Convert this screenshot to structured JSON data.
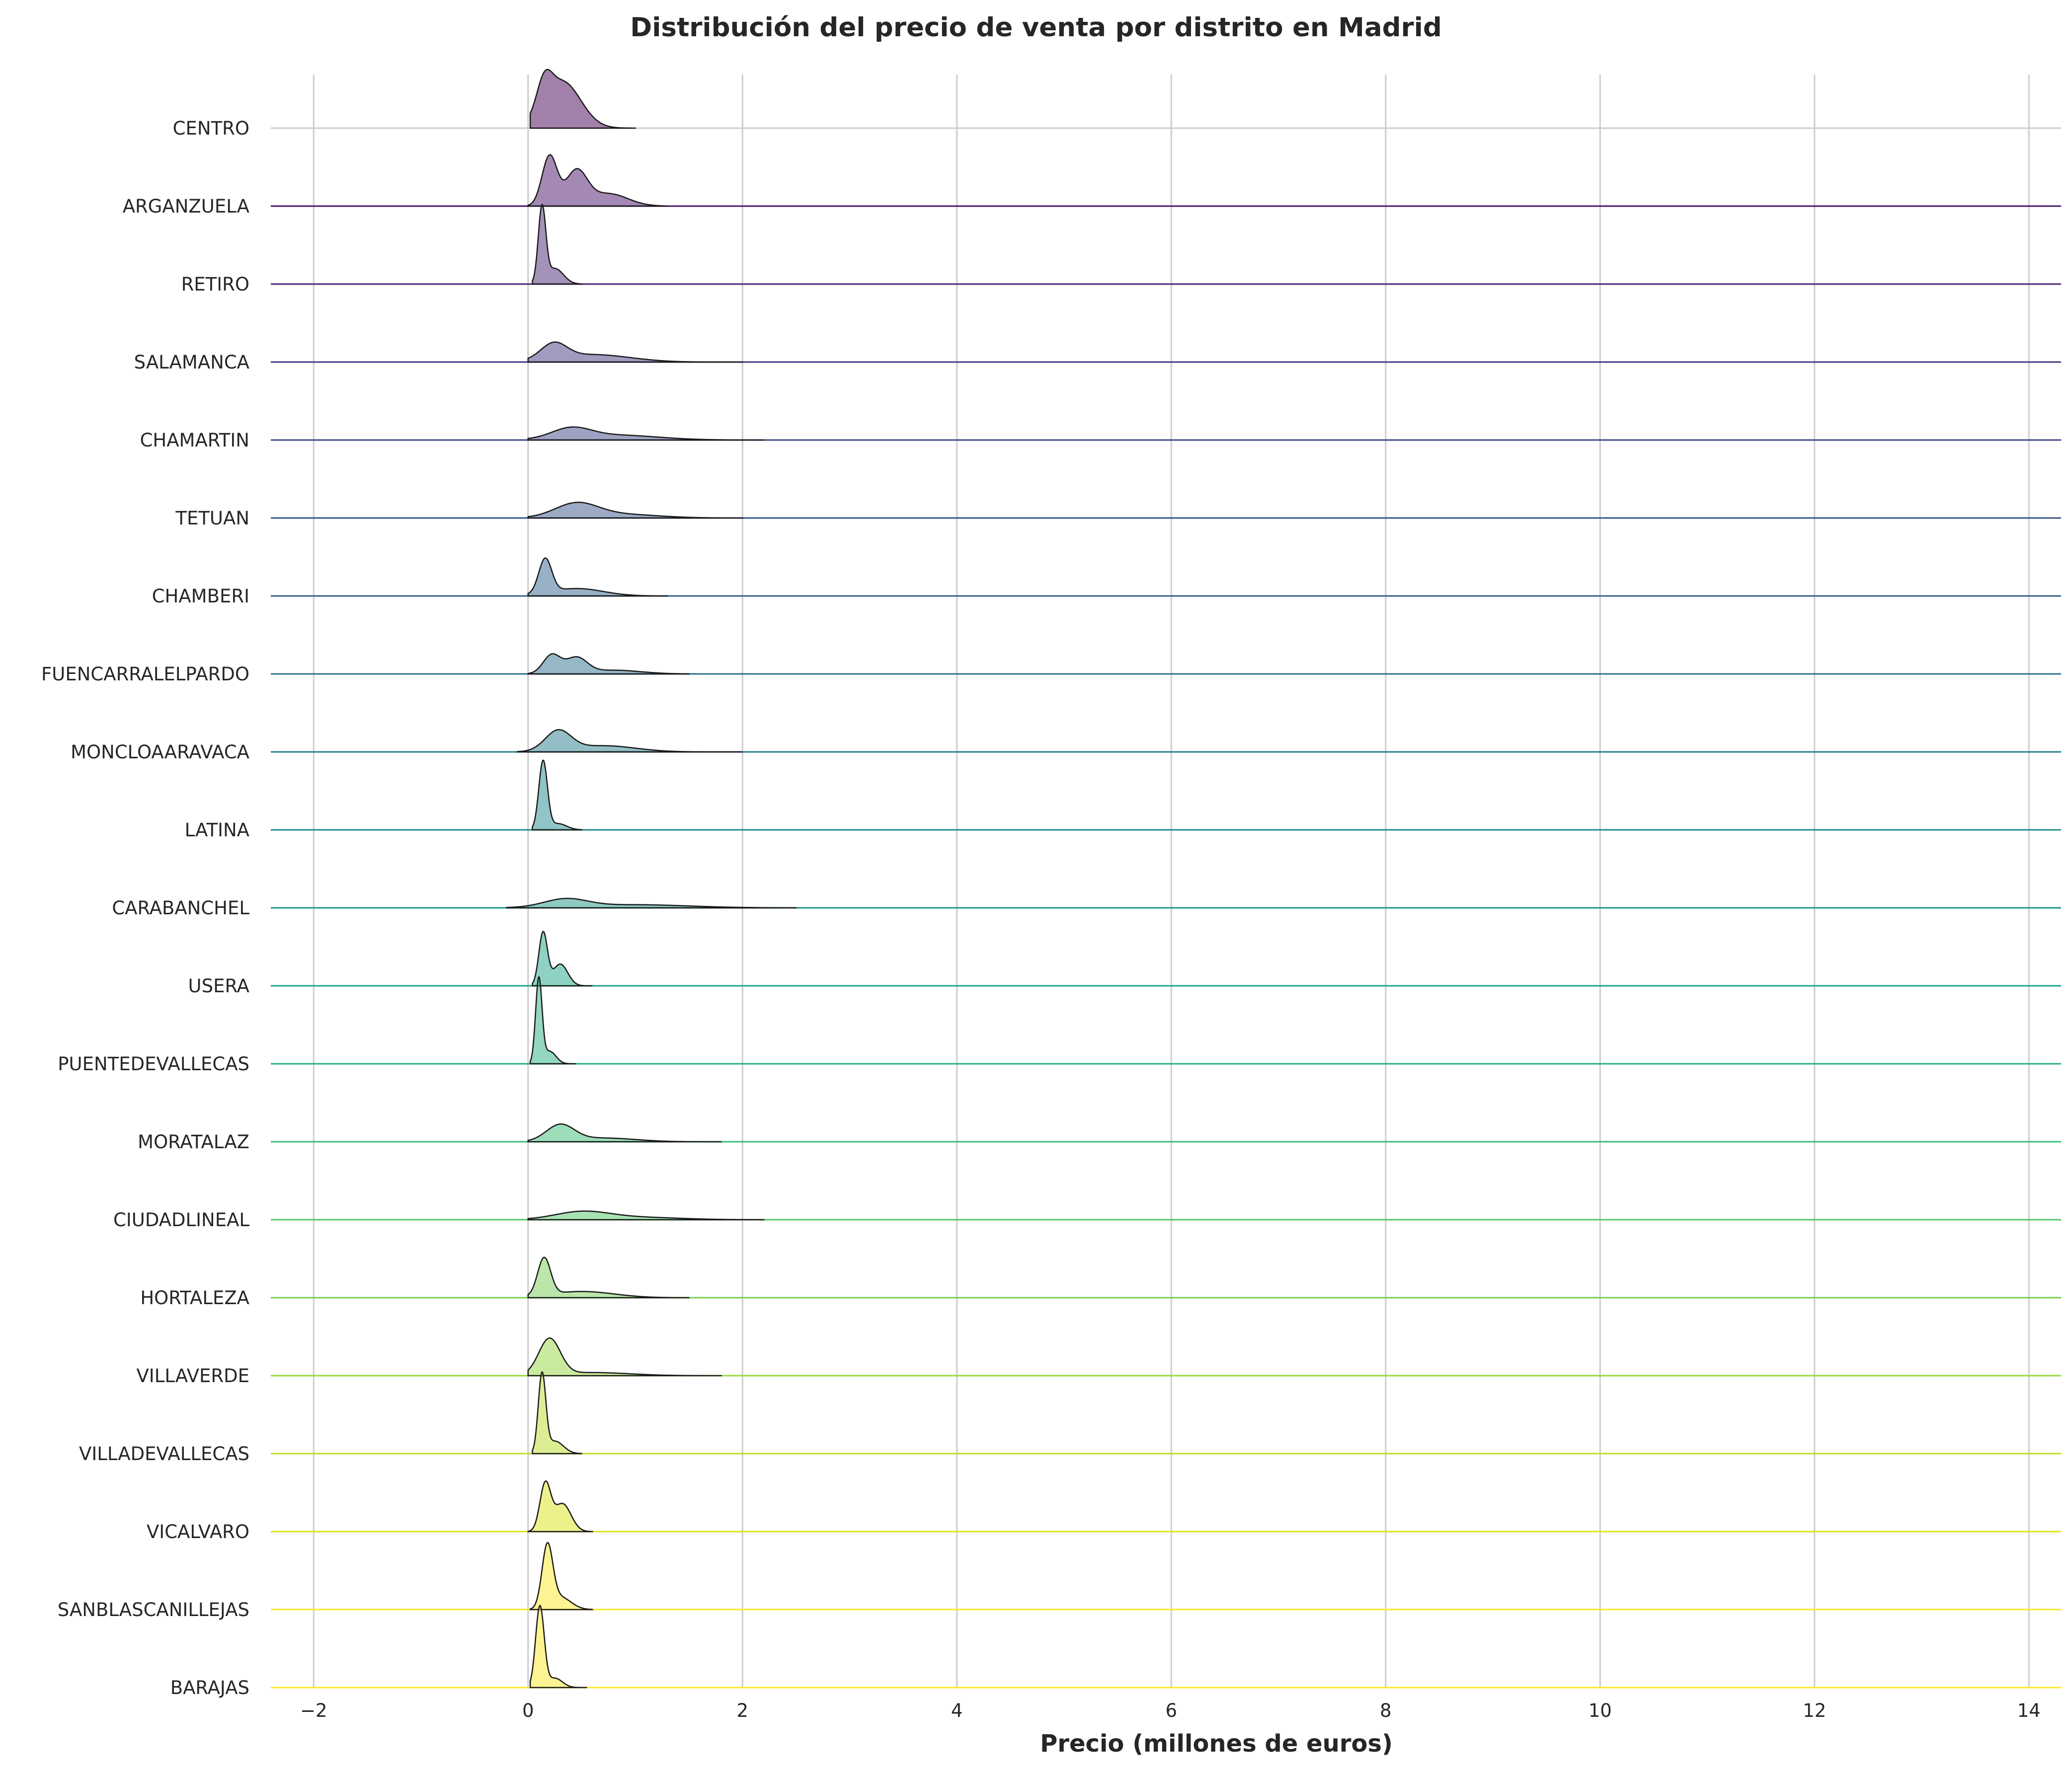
{
  "chart_data": {
    "type": "ridgeline",
    "title": "Distribución del precio de venta por distrito en Madrid",
    "xlabel": "Precio (millones de euros)",
    "ylabel": "",
    "xlim": [
      -2.4,
      14.3
    ],
    "xticks": [
      -2,
      0,
      2,
      4,
      6,
      8,
      10,
      12,
      14
    ],
    "xtick_labels": [
      "−2",
      "0",
      "2",
      "4",
      "6",
      "8",
      "10",
      "12",
      "14"
    ],
    "grid": true,
    "colormap": "viridis",
    "colors": [
      "#440154",
      "#481467",
      "#482576",
      "#453781",
      "#3f4788",
      "#39558c",
      "#33638d",
      "#2d718e",
      "#287d8e",
      "#238a8d",
      "#1f968b",
      "#20a386",
      "#29af7f",
      "#3cbc75",
      "#56c667",
      "#75d054",
      "#95d840",
      "#bade28",
      "#dde318",
      "#fde725",
      "#fde725"
    ],
    "categories": [
      "CENTRO",
      "ARGANZUELA",
      "RETIRO",
      "SALAMANCA",
      "CHAMARTIN",
      "TETUAN",
      "CHAMBERI",
      "FUENCARRALELPARDO",
      "MONCLOAARAVACA",
      "LATINA",
      "CARABANCHEL",
      "USERA",
      "PUENTEDEVALLECAS",
      "MORATALAZ",
      "CIUDADLINEAL",
      "HORTALEZA",
      "VILLAVERDE",
      "VILLADEVALLECAS",
      "VICALVARO",
      "SANBLASCANILLEJAS",
      "BARAJAS"
    ],
    "series": [
      {
        "name": "CENTRO",
        "components": [
          {
            "mu": 0.15,
            "sigma": 0.07,
            "a": 0.45
          },
          {
            "mu": 0.32,
            "sigma": 0.17,
            "a": 0.75
          }
        ],
        "xmin": 0.02,
        "xmax": 1.0
      },
      {
        "name": "ARGANZUELA",
        "components": [
          {
            "mu": 0.2,
            "sigma": 0.07,
            "a": 0.8
          },
          {
            "mu": 0.45,
            "sigma": 0.1,
            "a": 0.55
          },
          {
            "mu": 0.75,
            "sigma": 0.18,
            "a": 0.2
          }
        ],
        "xmin": 0.0,
        "xmax": 1.3
      },
      {
        "name": "RETIRO",
        "components": [
          {
            "mu": 0.13,
            "sigma": 0.035,
            "a": 1.2
          },
          {
            "mu": 0.25,
            "sigma": 0.08,
            "a": 0.25
          }
        ],
        "xmin": 0.04,
        "xmax": 0.5
      },
      {
        "name": "SALAMANCA",
        "components": [
          {
            "mu": 0.24,
            "sigma": 0.12,
            "a": 0.25
          },
          {
            "mu": 0.6,
            "sigma": 0.35,
            "a": 0.12
          }
        ],
        "xmin": 0.0,
        "xmax": 2.0
      },
      {
        "name": "CHAMARTIN",
        "components": [
          {
            "mu": 0.4,
            "sigma": 0.18,
            "a": 0.16
          },
          {
            "mu": 0.8,
            "sigma": 0.4,
            "a": 0.08
          }
        ],
        "xmin": 0.0,
        "xmax": 2.2
      },
      {
        "name": "TETUAN",
        "components": [
          {
            "mu": 0.45,
            "sigma": 0.2,
            "a": 0.22
          },
          {
            "mu": 0.85,
            "sigma": 0.35,
            "a": 0.06
          }
        ],
        "xmin": 0.0,
        "xmax": 2.0
      },
      {
        "name": "CHAMBERI",
        "components": [
          {
            "mu": 0.16,
            "sigma": 0.06,
            "a": 0.55
          },
          {
            "mu": 0.45,
            "sigma": 0.25,
            "a": 0.12
          }
        ],
        "xmin": 0.0,
        "xmax": 1.3
      },
      {
        "name": "FUENCARRALELPARDO",
        "components": [
          {
            "mu": 0.22,
            "sigma": 0.08,
            "a": 0.3
          },
          {
            "mu": 0.45,
            "sigma": 0.1,
            "a": 0.25
          },
          {
            "mu": 0.8,
            "sigma": 0.25,
            "a": 0.06
          }
        ],
        "xmin": 0.0,
        "xmax": 1.5
      },
      {
        "name": "MONCLOAARAVACA",
        "components": [
          {
            "mu": 0.28,
            "sigma": 0.12,
            "a": 0.32
          },
          {
            "mu": 0.7,
            "sigma": 0.3,
            "a": 0.1
          }
        ],
        "xmin": -0.1,
        "xmax": 2.0
      },
      {
        "name": "LATINA",
        "components": [
          {
            "mu": 0.14,
            "sigma": 0.04,
            "a": 1.1
          },
          {
            "mu": 0.28,
            "sigma": 0.08,
            "a": 0.1
          }
        ],
        "xmin": 0.04,
        "xmax": 0.5
      },
      {
        "name": "CARABANCHEL",
        "components": [
          {
            "mu": 0.35,
            "sigma": 0.2,
            "a": 0.13
          },
          {
            "mu": 1.0,
            "sigma": 0.5,
            "a": 0.05
          }
        ],
        "xmin": -0.2,
        "xmax": 2.5
      },
      {
        "name": "USERA",
        "components": [
          {
            "mu": 0.14,
            "sigma": 0.04,
            "a": 0.85
          },
          {
            "mu": 0.3,
            "sigma": 0.07,
            "a": 0.35
          }
        ],
        "xmin": 0.04,
        "xmax": 0.6
      },
      {
        "name": "PUENTEDEVALLECAS",
        "components": [
          {
            "mu": 0.1,
            "sigma": 0.03,
            "a": 1.35
          },
          {
            "mu": 0.2,
            "sigma": 0.06,
            "a": 0.2
          }
        ],
        "xmin": 0.02,
        "xmax": 0.45
      },
      {
        "name": "MORATALAZ",
        "components": [
          {
            "mu": 0.3,
            "sigma": 0.13,
            "a": 0.26
          },
          {
            "mu": 0.7,
            "sigma": 0.3,
            "a": 0.06
          }
        ],
        "xmin": 0.0,
        "xmax": 1.8
      },
      {
        "name": "CIUDADLINEAL",
        "components": [
          {
            "mu": 0.5,
            "sigma": 0.25,
            "a": 0.12
          },
          {
            "mu": 1.0,
            "sigma": 0.4,
            "a": 0.04
          }
        ],
        "xmin": 0.0,
        "xmax": 2.2
      },
      {
        "name": "HORTALEZA",
        "components": [
          {
            "mu": 0.15,
            "sigma": 0.06,
            "a": 0.6
          },
          {
            "mu": 0.5,
            "sigma": 0.3,
            "a": 0.1
          }
        ],
        "xmin": 0.0,
        "xmax": 1.5
      },
      {
        "name": "VILLAVERDE",
        "components": [
          {
            "mu": 0.2,
            "sigma": 0.1,
            "a": 0.58
          },
          {
            "mu": 0.6,
            "sigma": 0.35,
            "a": 0.05
          }
        ],
        "xmin": 0.0,
        "xmax": 1.8
      },
      {
        "name": "VILLADEVALLECAS",
        "components": [
          {
            "mu": 0.13,
            "sigma": 0.035,
            "a": 1.25
          },
          {
            "mu": 0.25,
            "sigma": 0.08,
            "a": 0.2
          }
        ],
        "xmin": 0.04,
        "xmax": 0.5
      },
      {
        "name": "VICALVARO",
        "components": [
          {
            "mu": 0.16,
            "sigma": 0.05,
            "a": 0.75
          },
          {
            "mu": 0.32,
            "sigma": 0.08,
            "a": 0.45
          }
        ],
        "xmin": 0.0,
        "xmax": 0.6
      },
      {
        "name": "SANBLASCANILLEJAS",
        "components": [
          {
            "mu": 0.18,
            "sigma": 0.05,
            "a": 0.98
          },
          {
            "mu": 0.3,
            "sigma": 0.1,
            "a": 0.2
          }
        ],
        "xmin": 0.02,
        "xmax": 0.6
      },
      {
        "name": "BARAJAS",
        "components": [
          {
            "mu": 0.11,
            "sigma": 0.04,
            "a": 1.3
          },
          {
            "mu": 0.25,
            "sigma": 0.07,
            "a": 0.15
          }
        ],
        "xmin": 0.02,
        "xmax": 0.55
      }
    ]
  }
}
